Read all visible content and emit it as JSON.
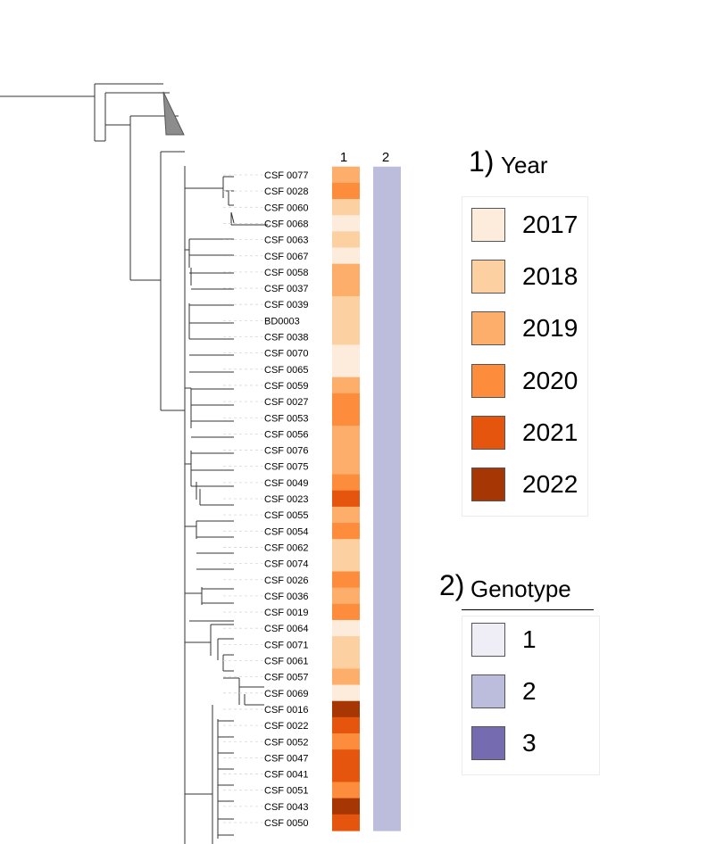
{
  "heatmap": {
    "columns": [
      {
        "label": "1",
        "legend": "year"
      },
      {
        "label": "2",
        "legend": "genotype"
      }
    ]
  },
  "taxa": [
    {
      "name": "CSF 0077",
      "year": "2019",
      "genotype": "2"
    },
    {
      "name": "CSF 0028",
      "year": "2020",
      "genotype": "2"
    },
    {
      "name": "CSF 0060",
      "year": "2018",
      "genotype": "2"
    },
    {
      "name": "CSF 0068",
      "year": "2017",
      "genotype": "2"
    },
    {
      "name": "CSF 0063",
      "year": "2018",
      "genotype": "2"
    },
    {
      "name": "CSF 0067",
      "year": "2017",
      "genotype": "2"
    },
    {
      "name": "CSF 0058",
      "year": "2019",
      "genotype": "2"
    },
    {
      "name": "CSF 0037",
      "year": "2019",
      "genotype": "2"
    },
    {
      "name": "CSF 0039",
      "year": "2018",
      "genotype": "2"
    },
    {
      "name": "BD0003",
      "year": "2018",
      "genotype": "2"
    },
    {
      "name": "CSF 0038",
      "year": "2018",
      "genotype": "2"
    },
    {
      "name": "CSF 0070",
      "year": "2017",
      "genotype": "2"
    },
    {
      "name": "CSF 0065",
      "year": "2017",
      "genotype": "2"
    },
    {
      "name": "CSF 0059",
      "year": "2019",
      "genotype": "2"
    },
    {
      "name": "CSF 0027",
      "year": "2020",
      "genotype": "2"
    },
    {
      "name": "CSF 0053",
      "year": "2020",
      "genotype": "2"
    },
    {
      "name": "CSF 0056",
      "year": "2019",
      "genotype": "2"
    },
    {
      "name": "CSF 0076",
      "year": "2019",
      "genotype": "2"
    },
    {
      "name": "CSF 0075",
      "year": "2019",
      "genotype": "2"
    },
    {
      "name": "CSF 0049",
      "year": "2020",
      "genotype": "2"
    },
    {
      "name": "CSF 0023",
      "year": "2021",
      "genotype": "2"
    },
    {
      "name": "CSF 0055",
      "year": "2019",
      "genotype": "2"
    },
    {
      "name": "CSF 0054",
      "year": "2020",
      "genotype": "2"
    },
    {
      "name": "CSF 0062",
      "year": "2018",
      "genotype": "2"
    },
    {
      "name": "CSF 0074",
      "year": "2018",
      "genotype": "2"
    },
    {
      "name": "CSF 0026",
      "year": "2020",
      "genotype": "2"
    },
    {
      "name": "CSF 0036",
      "year": "2019",
      "genotype": "2"
    },
    {
      "name": "CSF 0019",
      "year": "2020",
      "genotype": "2"
    },
    {
      "name": "CSF 0064",
      "year": "2017",
      "genotype": "2"
    },
    {
      "name": "CSF 0071",
      "year": "2018",
      "genotype": "2"
    },
    {
      "name": "CSF 0061",
      "year": "2018",
      "genotype": "2"
    },
    {
      "name": "CSF 0057",
      "year": "2019",
      "genotype": "2"
    },
    {
      "name": "CSF 0069",
      "year": "2017",
      "genotype": "2"
    },
    {
      "name": "CSF 0016",
      "year": "2022",
      "genotype": "2"
    },
    {
      "name": "CSF 0022",
      "year": "2021",
      "genotype": "2"
    },
    {
      "name": "CSF 0052",
      "year": "2020",
      "genotype": "2"
    },
    {
      "name": "CSF 0047",
      "year": "2021",
      "genotype": "2"
    },
    {
      "name": "CSF 0041",
      "year": "2021",
      "genotype": "2"
    },
    {
      "name": "CSF 0051",
      "year": "2020",
      "genotype": "2"
    },
    {
      "name": "CSF 0043",
      "year": "2022",
      "genotype": "2"
    },
    {
      "name": "CSF 0050",
      "year": "2021",
      "genotype": "2"
    }
  ],
  "legends": {
    "year": {
      "number": "1)",
      "title": "Year",
      "items": [
        {
          "label": "2017",
          "color": "#fdebdc"
        },
        {
          "label": "2018",
          "color": "#fdd0a2"
        },
        {
          "label": "2019",
          "color": "#fdae6b"
        },
        {
          "label": "2020",
          "color": "#fd8d3c"
        },
        {
          "label": "2021",
          "color": "#e6550d"
        },
        {
          "label": "2022",
          "color": "#a63603"
        }
      ]
    },
    "genotype": {
      "number": "2)",
      "title": "Genotype",
      "items": [
        {
          "label": "1",
          "color": "#efedf5"
        },
        {
          "label": "2",
          "color": "#bcbddc"
        },
        {
          "label": "3",
          "color": "#756bb1"
        }
      ]
    }
  }
}
